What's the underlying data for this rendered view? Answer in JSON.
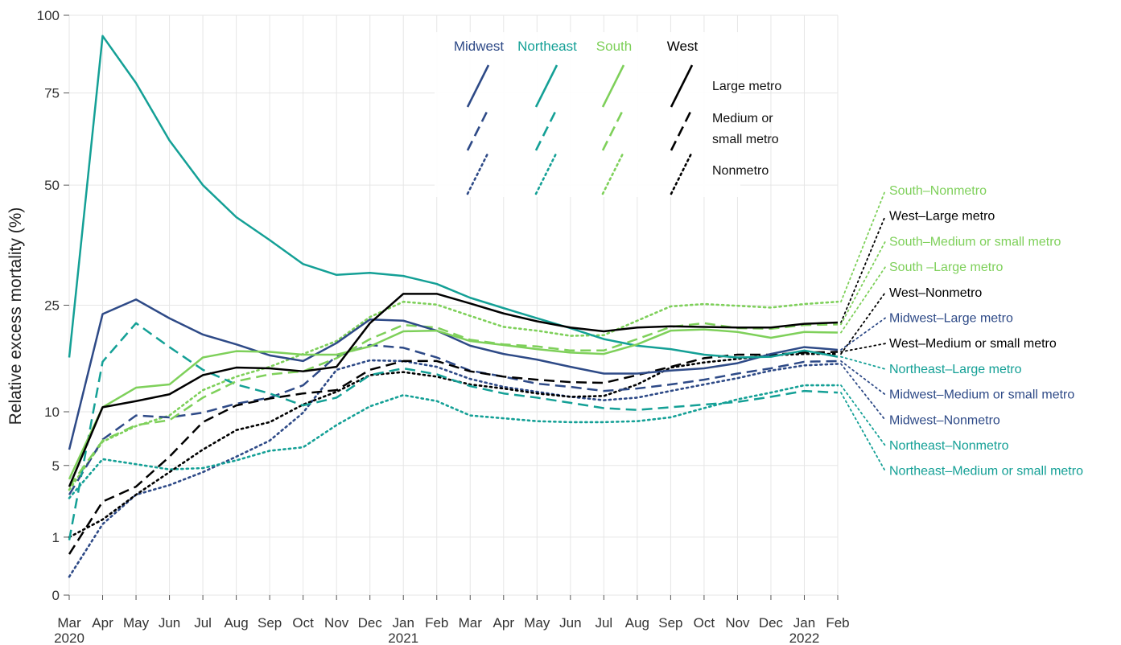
{
  "colors": {
    "Midwest": "#2e4a87",
    "Northeast": "#14a096",
    "South": "#7ed05a",
    "West": "#000000"
  },
  "legend": {
    "regions": [
      "Midwest",
      "Northeast",
      "South",
      "West"
    ],
    "types": [
      {
        "key": "large",
        "label_lines": [
          "Large metro"
        ],
        "dash": "solid"
      },
      {
        "key": "medium",
        "label_lines": [
          "Medium or",
          "small metro"
        ],
        "dash": "dashed"
      },
      {
        "key": "non",
        "label_lines": [
          "Nonmetro"
        ],
        "dash": "dotted"
      }
    ]
  },
  "chart_data": {
    "type": "line",
    "title": "",
    "xlabel": "",
    "ylabel": "Relative excess mortality (%)",
    "y_scale": "sqrt",
    "ylim": [
      0,
      100
    ],
    "y_ticks": [
      0,
      1,
      5,
      10,
      25,
      50,
      75,
      100
    ],
    "x": [
      "Mar",
      "Apr",
      "May",
      "Jun",
      "Jul",
      "Aug",
      "Sep",
      "Oct",
      "Nov",
      "Dec",
      "Jan",
      "Feb",
      "Mar",
      "Apr",
      "May",
      "Jun",
      "Jul",
      "Aug",
      "Sep",
      "Oct",
      "Nov",
      "Dec",
      "Jan",
      "Feb"
    ],
    "x_year_labels": [
      {
        "index": 0,
        "label": "2020"
      },
      {
        "index": 10,
        "label": "2021"
      },
      {
        "index": 22,
        "label": "2022"
      }
    ],
    "grid": true,
    "series": [
      {
        "name": "Midwest–Large metro",
        "region": "Midwest",
        "dash": "solid",
        "values": [
          6.3,
          23.5,
          26.0,
          22.8,
          20.2,
          18.7,
          17.1,
          16.3,
          18.9,
          22.6,
          22.4,
          20.8,
          18.5,
          17.3,
          16.5,
          15.5,
          14.6,
          14.6,
          15.0,
          15.3,
          16.0,
          17.3,
          18.3,
          17.9
        ]
      },
      {
        "name": "Midwest–Medium or small metro",
        "region": "Midwest",
        "dash": "dashed",
        "values": [
          3.0,
          7.2,
          9.6,
          9.4,
          9.9,
          10.9,
          11.6,
          13.1,
          17.0,
          18.6,
          18.2,
          16.8,
          15.0,
          14.2,
          13.3,
          12.9,
          12.4,
          12.7,
          13.2,
          13.8,
          14.6,
          15.3,
          16.2,
          16.3
        ]
      },
      {
        "name": "Midwest–Nonmetro",
        "region": "Midwest",
        "dash": "dotted",
        "values": [
          0.1,
          1.5,
          3.0,
          3.6,
          4.5,
          5.7,
          7.1,
          9.9,
          15.1,
          16.4,
          16.3,
          15.5,
          13.9,
          12.9,
          12.3,
          11.7,
          11.3,
          11.6,
          12.4,
          13.2,
          14.0,
          15.0,
          15.7,
          15.9
        ]
      },
      {
        "name": "Northeast–Large metro",
        "region": "Northeast",
        "dash": "solid",
        "values": [
          16.8,
          93.0,
          78.0,
          61.5,
          50.0,
          42.5,
          37.5,
          32.6,
          30.5,
          30.9,
          30.3,
          28.8,
          26.3,
          24.5,
          22.8,
          21.2,
          19.5,
          18.5,
          18.0,
          17.2,
          16.8,
          16.9,
          17.8,
          16.9
        ]
      },
      {
        "name": "Northeast–Medium or small metro",
        "region": "Northeast",
        "dash": "dashed",
        "values": [
          0.9,
          16.2,
          22.0,
          18.3,
          15.1,
          13.2,
          12.1,
          10.7,
          11.6,
          14.4,
          15.3,
          14.5,
          13.0,
          12.1,
          11.6,
          11.0,
          10.4,
          10.2,
          10.5,
          10.8,
          11.1,
          11.7,
          12.4,
          12.2
        ]
      },
      {
        "name": "Northeast–Nonmetro",
        "region": "Northeast",
        "dash": "dotted",
        "values": [
          2.8,
          5.5,
          5.1,
          4.7,
          4.8,
          5.4,
          6.2,
          6.5,
          8.6,
          10.6,
          11.9,
          11.2,
          9.6,
          9.3,
          9.0,
          8.9,
          8.9,
          9.0,
          9.4,
          10.4,
          11.4,
          12.2,
          13.1,
          13.1
        ]
      },
      {
        "name": "South–Large metro",
        "region": "South",
        "dash": "solid",
        "values": [
          4.0,
          10.5,
          12.8,
          13.2,
          16.8,
          17.7,
          17.6,
          17.2,
          17.2,
          18.4,
          20.7,
          20.8,
          19.2,
          18.6,
          18.0,
          17.5,
          17.3,
          18.7,
          20.8,
          21.0,
          20.6,
          19.7,
          20.6,
          20.5
        ]
      },
      {
        "name": "South–Medium or small metro",
        "region": "South",
        "dash": "dashed",
        "values": [
          3.5,
          7.1,
          8.6,
          9.1,
          11.6,
          13.6,
          14.5,
          14.9,
          16.7,
          19.5,
          21.7,
          21.3,
          19.4,
          18.7,
          18.4,
          17.8,
          17.8,
          19.5,
          21.4,
          22.0,
          21.2,
          21.1,
          21.7,
          21.8
        ]
      },
      {
        "name": "South–Nonmetro",
        "region": "South",
        "dash": "dotted",
        "values": [
          3.3,
          7.0,
          8.5,
          9.6,
          12.5,
          14.2,
          15.5,
          17.3,
          19.2,
          23.0,
          25.6,
          25.1,
          23.2,
          21.4,
          20.8,
          20.0,
          20.1,
          22.4,
          24.8,
          25.2,
          24.9,
          24.6,
          25.2,
          25.6
        ]
      },
      {
        "name": "West–Large metro",
        "region": "West",
        "dash": "solid",
        "values": [
          3.5,
          10.5,
          11.2,
          12.0,
          14.4,
          15.4,
          15.3,
          14.9,
          15.5,
          22.0,
          27.0,
          27.0,
          25.3,
          23.6,
          22.3,
          21.3,
          20.7,
          21.3,
          21.5,
          21.4,
          21.3,
          21.3,
          21.9,
          22.1
        ]
      },
      {
        "name": "West–Medium or small metro",
        "region": "West",
        "dash": "dashed",
        "values": [
          0.5,
          2.6,
          3.5,
          5.7,
          8.9,
          10.7,
          11.5,
          12.1,
          12.5,
          15.1,
          16.3,
          16.3,
          14.9,
          14.2,
          13.8,
          13.5,
          13.4,
          14.4,
          15.5,
          16.7,
          17.2,
          17.2,
          17.5,
          17.6
        ]
      },
      {
        "name": "West–Nonmetro",
        "region": "West",
        "dash": "dotted",
        "values": [
          1.0,
          1.7,
          3.0,
          4.5,
          6.3,
          8.1,
          8.9,
          10.8,
          12.3,
          14.4,
          14.8,
          14.2,
          13.2,
          12.7,
          12.1,
          11.7,
          11.8,
          13.2,
          15.4,
          16.1,
          16.6,
          17.1,
          17.3,
          17.3
        ]
      }
    ],
    "end_labels": [
      {
        "text": "South–Nonmetro",
        "region": "South",
        "series": "South–Nonmetro"
      },
      {
        "text": "West–Large metro",
        "region": "West",
        "series": "West–Large metro"
      },
      {
        "text": "South–Medium or small metro",
        "region": "South",
        "series": "South–Medium or small metro"
      },
      {
        "text": "South –Large metro",
        "region": "South",
        "series": "South–Large metro"
      },
      {
        "text": "West–Nonmetro",
        "region": "West",
        "series": "West–Nonmetro"
      },
      {
        "text": "Midwest–Large metro",
        "region": "Midwest",
        "series": "Midwest–Large metro"
      },
      {
        "text": "West–Medium or small metro",
        "region": "West",
        "series": "West–Medium or small metro"
      },
      {
        "text": "Northeast–Large metro",
        "region": "Northeast",
        "series": "Northeast–Large metro"
      },
      {
        "text": "Midwest–Medium or small metro",
        "region": "Midwest",
        "series": "Midwest–Medium or small metro"
      },
      {
        "text": "Midwest–Nonmetro",
        "region": "Midwest",
        "series": "Midwest–Nonmetro"
      },
      {
        "text": "Northeast–Nonmetro",
        "region": "Northeast",
        "series": "Northeast–Nonmetro"
      },
      {
        "text": "Northeast–Medium or small metro",
        "region": "Northeast",
        "series": "Northeast–Medium or small metro"
      }
    ]
  }
}
